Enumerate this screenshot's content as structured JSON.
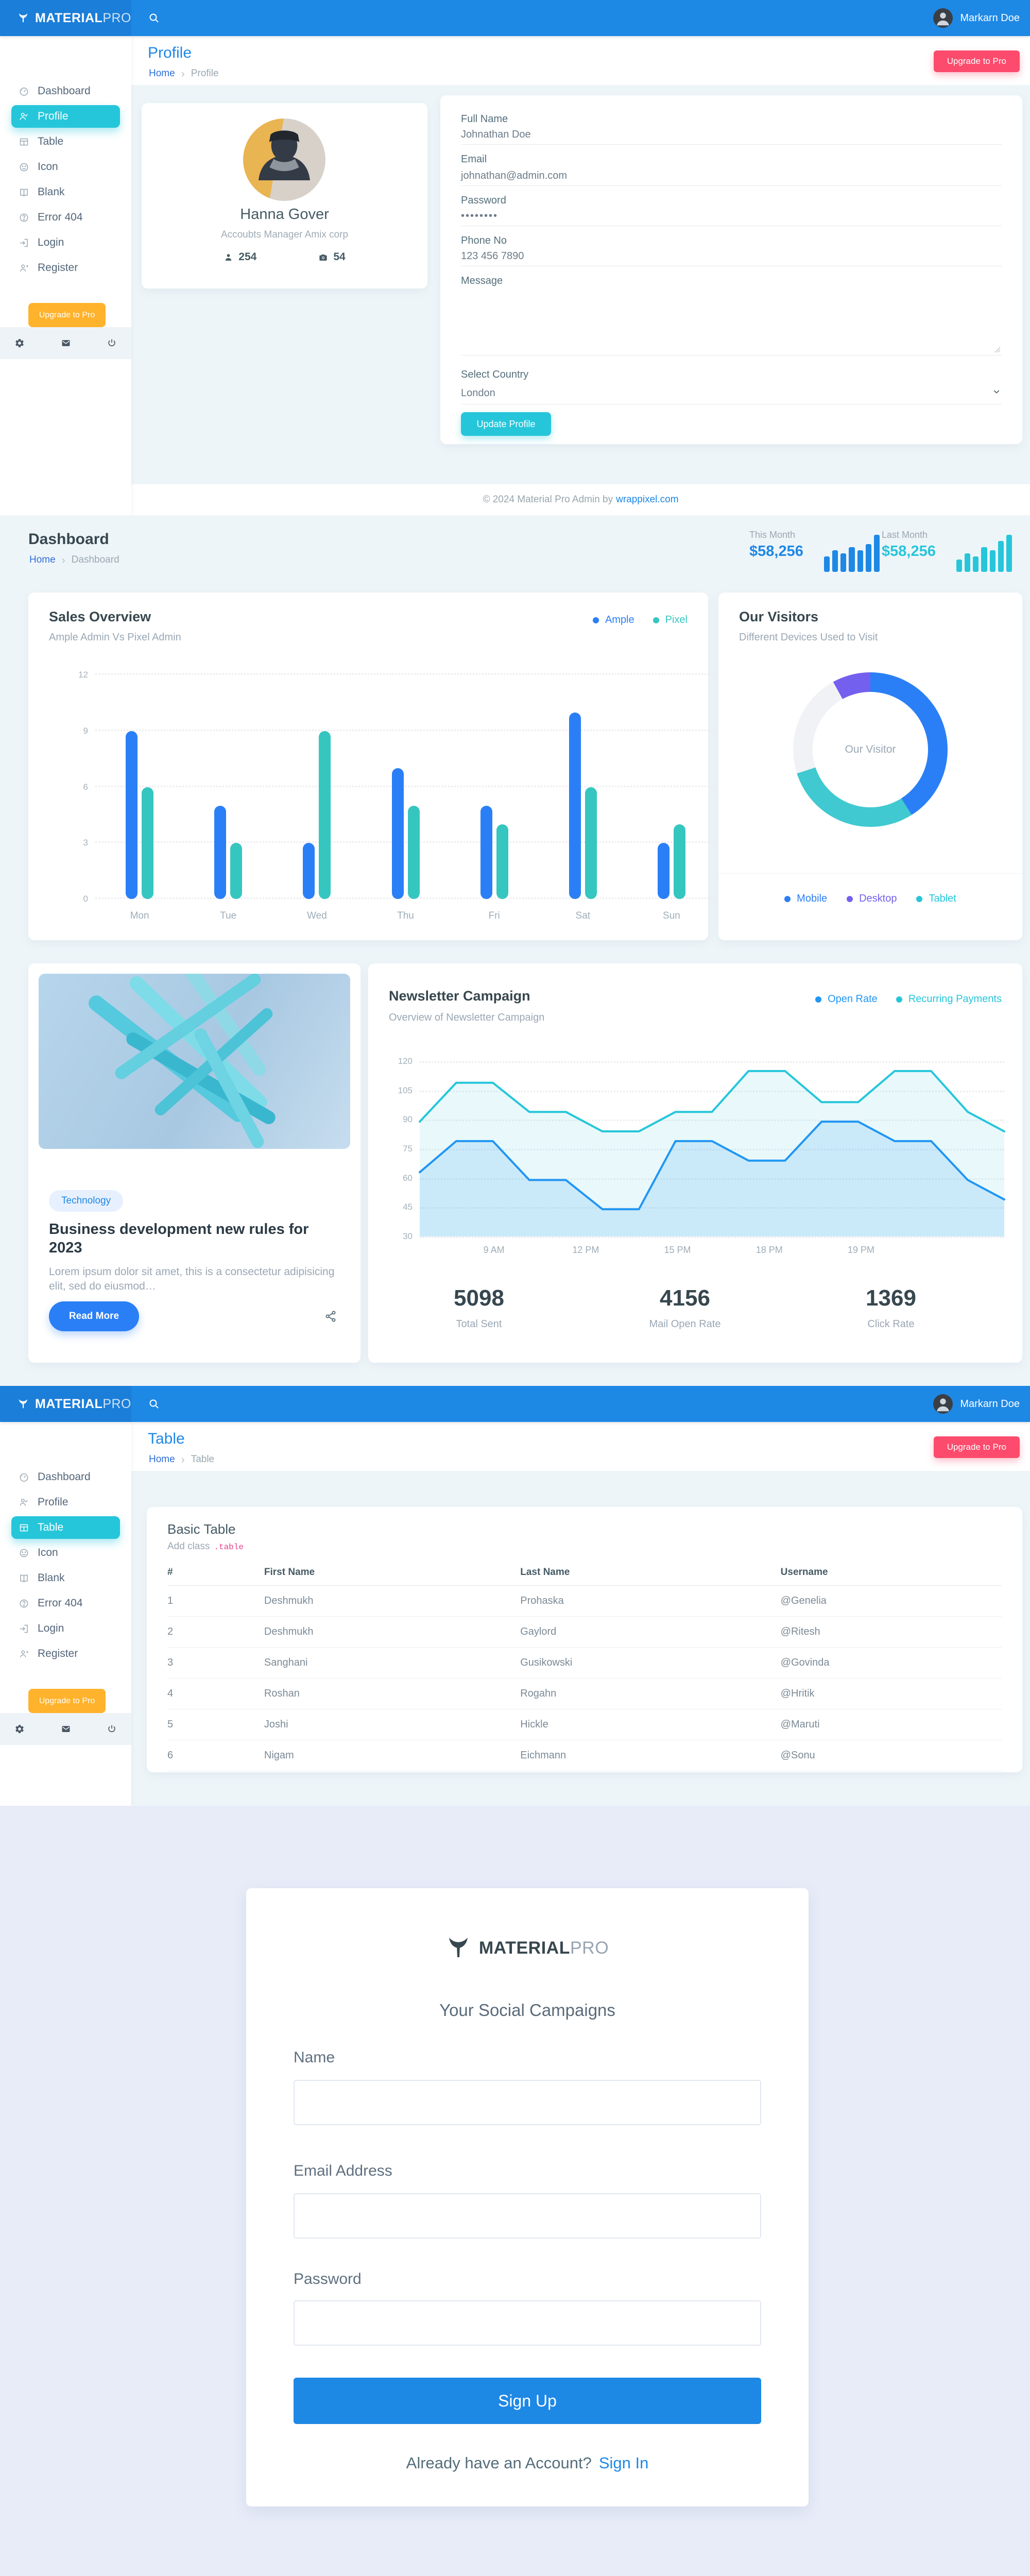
{
  "brand": {
    "logo_bold": "MATERIAL",
    "logo_light": "PRO"
  },
  "topbar": {
    "user_name": "Markarn Doe"
  },
  "sidebar": {
    "items": [
      {
        "label": "Dashboard",
        "icon": "dashboard-icon"
      },
      {
        "label": "Profile",
        "icon": "profile-icon"
      },
      {
        "label": "Table",
        "icon": "table-icon"
      },
      {
        "label": "Icon",
        "icon": "smiley-icon"
      },
      {
        "label": "Blank",
        "icon": "blank-icon"
      },
      {
        "label": "Error 404",
        "icon": "error-icon"
      },
      {
        "label": "Login",
        "icon": "login-icon"
      },
      {
        "label": "Register",
        "icon": "register-icon"
      }
    ],
    "upgrade_label": "Upgrade to Pro"
  },
  "profile_page": {
    "title": "Profile",
    "breadcrumb": {
      "home": "Home",
      "separator": "›",
      "current": "Profile"
    },
    "upgrade_button": "Upgrade to Pro",
    "profile_card": {
      "name": "Hanna Gover",
      "role": "Accoubts Manager Amix corp",
      "followers": "254",
      "photos": "54"
    },
    "form": {
      "full_name_label": "Full Name",
      "full_name_value": "Johnathan Doe",
      "email_label": "Email",
      "email_value": "johnathan@admin.com",
      "password_label": "Password",
      "password_value": "••••••••",
      "phone_label": "Phone No",
      "phone_value": "123 456 7890",
      "message_label": "Message",
      "country_label": "Select Country",
      "country_value": "London",
      "submit_label": "Update Profile"
    },
    "footer_text": "© 2024 Material Pro Admin by",
    "footer_link": "wrappixel.com"
  },
  "dashboard_page": {
    "title": "Dashboard",
    "breadcrumb": {
      "home": "Home",
      "separator": "›",
      "current": "Dashboard"
    },
    "this_month_label": "This Month",
    "this_month_value": "$58,256",
    "last_month_label": "Last Month",
    "last_month_value": "$58,256",
    "blog_card": {
      "badge": "Technology",
      "title": "Business development new rules for 2023",
      "excerpt": "Lorem ipsum dolor sit amet, this is a consectetur adipisicing elit, sed do eiusmod…",
      "button": "Read More"
    }
  },
  "table_page": {
    "title": "Table",
    "breadcrumb": {
      "home": "Home",
      "separator": "›",
      "current": "Table"
    },
    "upgrade_button": "Upgrade to Pro",
    "card_title": "Basic Table",
    "card_subtitle_prefix": "Add class",
    "card_subtitle_code": ".table",
    "columns": [
      "#",
      "First Name",
      "Last Name",
      "Username"
    ],
    "rows": [
      [
        "1",
        "Deshmukh",
        "Prohaska",
        "@Genelia"
      ],
      [
        "2",
        "Deshmukh",
        "Gaylord",
        "@Ritesh"
      ],
      [
        "3",
        "Sanghani",
        "Gusikowski",
        "@Govinda"
      ],
      [
        "4",
        "Roshan",
        "Rogahn",
        "@Hritik"
      ],
      [
        "5",
        "Joshi",
        "Hickle",
        "@Maruti"
      ],
      [
        "6",
        "Nigam",
        "Eichmann",
        "@Sonu"
      ]
    ]
  },
  "signup_page": {
    "heading": "Your Social Campaigns",
    "name_label": "Name",
    "email_label": "Email Address",
    "password_label": "Password",
    "submit_label": "Sign Up",
    "signin_prompt": "Already have an Account?",
    "signin_link": "Sign In"
  },
  "colors": {
    "primary": "#1e88e5",
    "teal": "#26c6da",
    "pink": "#fc4b6c",
    "orange": "#ffb22b",
    "purple": "#7460ee",
    "bar_blue": "#2a7ff6",
    "bar_teal": "#36c6c0"
  },
  "chart_data": [
    {
      "id": "sales-overview",
      "type": "bar",
      "title": "Sales Overview",
      "subtitle": "Ample Admin Vs Pixel Admin",
      "categories": [
        "Mon",
        "Tue",
        "Wed",
        "Thu",
        "Fri",
        "Sat",
        "Sun"
      ],
      "series": [
        {
          "name": "Ample",
          "color": "#2a7ff6",
          "values": [
            9,
            5,
            3,
            7,
            5,
            10,
            3
          ]
        },
        {
          "name": "Pixel",
          "color": "#36c6c0",
          "values": [
            6,
            3,
            9,
            5,
            4,
            6,
            4
          ]
        }
      ],
      "xlabel": "",
      "ylabel": "",
      "ylim": [
        0,
        12
      ],
      "yticks": [
        0,
        3,
        6,
        9,
        12
      ],
      "grid": "dotted",
      "legend_position": "top-right"
    },
    {
      "id": "our-visitors",
      "type": "pie",
      "title": "Our Visitors",
      "subtitle": "Different Devices Used to Visit",
      "center_label": "Our Visitor",
      "segments": [
        {
          "name": "Mobile",
          "value": 41,
          "color": "#2a7ff6"
        },
        {
          "name": "Tablet",
          "value": 29,
          "color": "#40c9d1"
        },
        {
          "name": "Unlabeled",
          "value": 22,
          "color": "#f0f2f5"
        },
        {
          "name": "Desktop",
          "value": 8,
          "color": "#7460ee"
        }
      ],
      "legend": [
        {
          "label": "Mobile",
          "color": "#2a7ff6"
        },
        {
          "label": "Desktop",
          "color": "#7460ee"
        },
        {
          "label": "Tablet",
          "color": "#26c6da"
        }
      ],
      "legend_position": "bottom-center"
    },
    {
      "id": "newsletter-campaign",
      "type": "area",
      "title": "Newsletter Campaign",
      "subtitle": "Overview of Newsletter Campaign",
      "x_labels": [
        "9 AM",
        "12 PM",
        "15 PM",
        "18 PM",
        "19 PM"
      ],
      "ylim": [
        30,
        120
      ],
      "yticks": [
        30,
        45,
        60,
        75,
        90,
        105,
        120
      ],
      "series": [
        {
          "name": "Recurring Payments",
          "color": "#26c6da",
          "fill": "rgba(38,198,218,0.10)",
          "values": [
            89,
            109,
            109,
            94,
            94,
            84,
            84,
            94,
            94,
            115,
            115,
            99,
            99,
            115,
            115,
            94,
            84
          ]
        },
        {
          "name": "Open Rate",
          "color": "#2196f3",
          "fill": "rgba(33,150,243,0.15)",
          "values": [
            63,
            79,
            79,
            59,
            59,
            44,
            44,
            79,
            79,
            69,
            69,
            89,
            89,
            79,
            79,
            59,
            49
          ]
        }
      ],
      "grid": "dotted",
      "legend_position": "top-right",
      "stats": [
        {
          "value": "5098",
          "label": "Total Sent"
        },
        {
          "value": "4156",
          "label": "Mail Open Rate"
        },
        {
          "value": "1369",
          "label": "Click Rate"
        }
      ]
    },
    {
      "id": "this-month-spark",
      "type": "bar",
      "color": "#1e88e5",
      "values": [
        5,
        7,
        6,
        8,
        7,
        9,
        12
      ]
    },
    {
      "id": "last-month-spark",
      "type": "bar",
      "color": "#26c6da",
      "values": [
        4,
        6,
        5,
        8,
        7,
        10,
        12
      ]
    }
  ]
}
